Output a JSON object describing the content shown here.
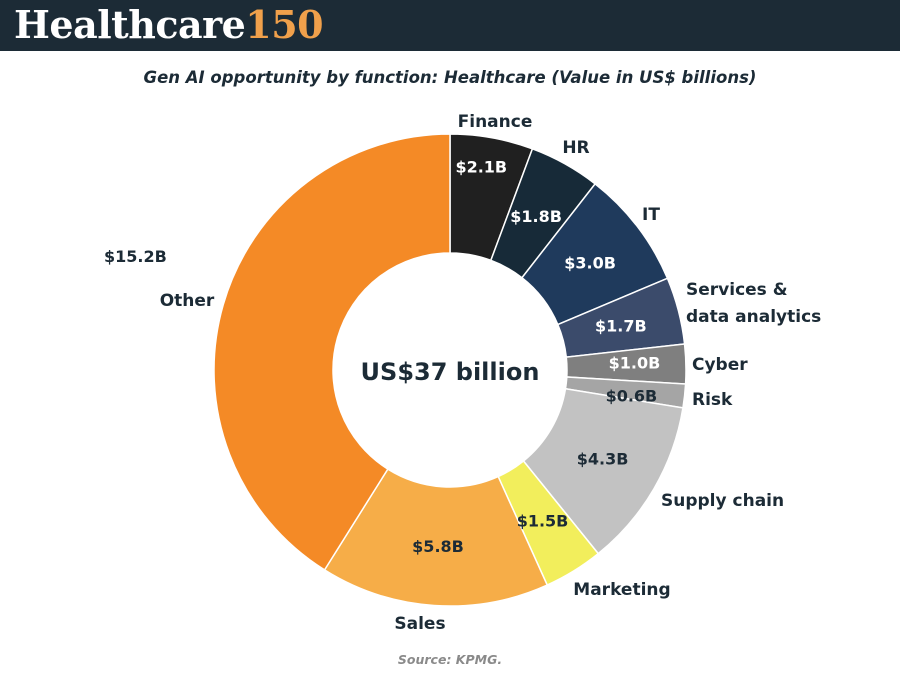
{
  "header": {
    "brand_name": "Healthcare",
    "brand_number": "150"
  },
  "chart_data": {
    "type": "pie",
    "variant": "donut",
    "title": "Gen AI opportunity by function: Healthcare (Value in US$ billions)",
    "center_label": "US$37 billion",
    "unit": "US$ billions",
    "slices": [
      {
        "category": "Finance",
        "value": 2.1,
        "label": "$2.1B",
        "color": "#202020",
        "text_color": "#ffffff"
      },
      {
        "category": "HR",
        "value": 1.8,
        "label": "$1.8B",
        "color": "#172a38",
        "text_color": "#ffffff"
      },
      {
        "category": "IT",
        "value": 3.0,
        "label": "$3.0B",
        "color": "#1f3a5c",
        "text_color": "#ffffff"
      },
      {
        "category": "Services & data analytics",
        "category_lines": [
          "Services &",
          "data analytics"
        ],
        "value": 1.7,
        "label": "$1.7B",
        "color": "#3b4b6b",
        "text_color": "#ffffff"
      },
      {
        "category": "Cyber",
        "value": 1.0,
        "label": "$1.0B",
        "color": "#7f7f7f",
        "text_color": "#ffffff"
      },
      {
        "category": "Risk",
        "value": 0.6,
        "label": "$0.6B",
        "color": "#a5a5a5",
        "text_color": "#1c2b36"
      },
      {
        "category": "Supply chain",
        "value": 4.3,
        "label": "$4.3B",
        "color": "#c2c2c2",
        "text_color": "#1c2b36"
      },
      {
        "category": "Marketing",
        "value": 1.5,
        "label": "$1.5B",
        "color": "#f2ee5c",
        "text_color": "#1c2b36"
      },
      {
        "category": "Sales",
        "value": 5.8,
        "label": "$5.8B",
        "color": "#f6ad48",
        "text_color": "#1c2b36"
      },
      {
        "category": "Other",
        "value": 15.2,
        "label": "$15.2B",
        "color": "#f48a26",
        "text_color": "#1c2b36"
      }
    ]
  },
  "source": "Source: KPMG."
}
